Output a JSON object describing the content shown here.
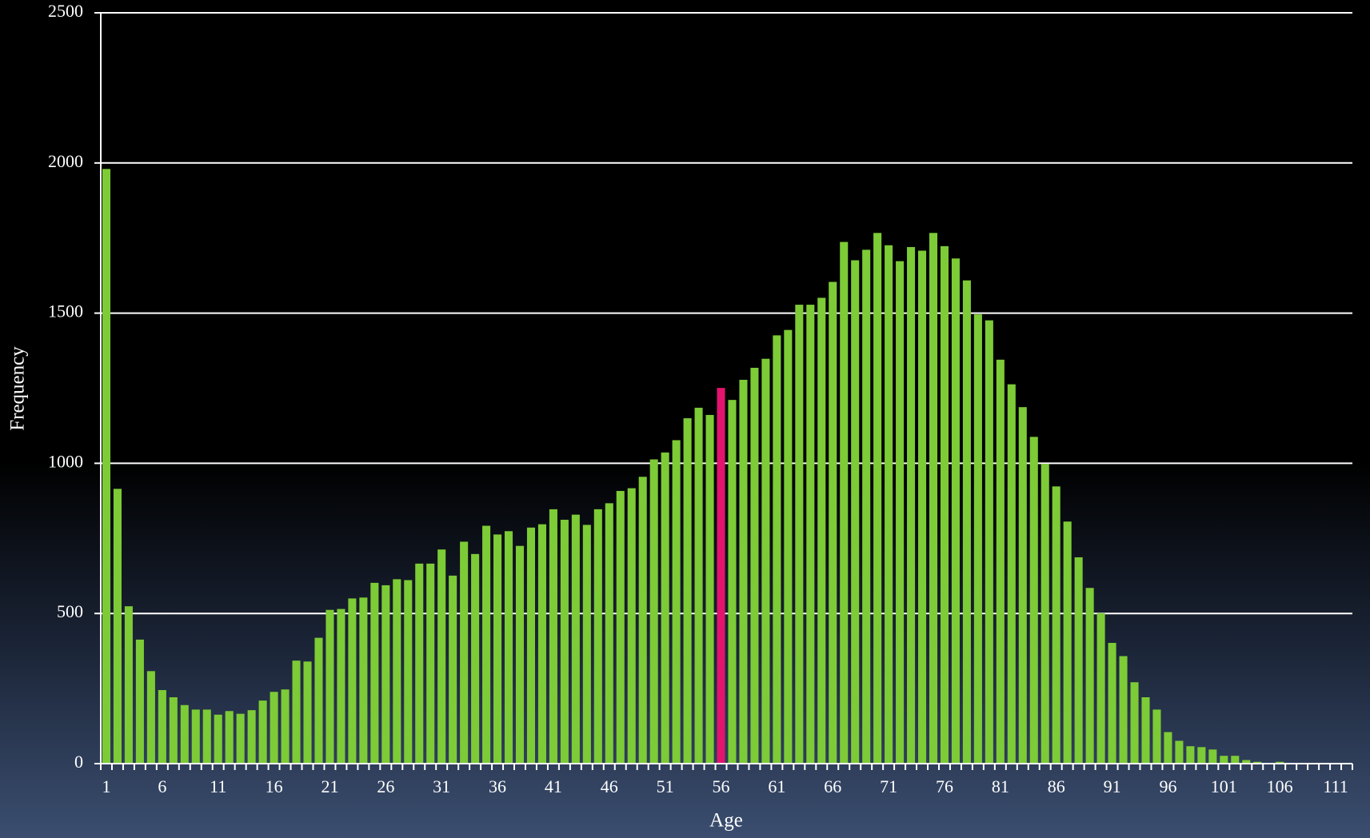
{
  "chart_data": {
    "type": "bar",
    "x_label": "Age",
    "y_label": "Frequency",
    "categories": [
      "1",
      null,
      null,
      null,
      null,
      "6",
      null,
      null,
      null,
      null,
      "11",
      null,
      null,
      null,
      null,
      "16",
      null,
      null,
      null,
      null,
      "21",
      null,
      null,
      null,
      null,
      "26",
      null,
      null,
      null,
      null,
      "31",
      null,
      null,
      null,
      null,
      "36",
      null,
      null,
      null,
      null,
      "41",
      null,
      null,
      null,
      null,
      "46",
      null,
      null,
      null,
      null,
      "51",
      null,
      null,
      null,
      null,
      "56",
      null,
      null,
      null,
      null,
      "61",
      null,
      null,
      null,
      null,
      "66",
      null,
      null,
      null,
      null,
      "71",
      null,
      null,
      null,
      null,
      "76",
      null,
      null,
      null,
      null,
      "81",
      null,
      null,
      null,
      null,
      "86",
      null,
      null,
      null,
      null,
      "91",
      null,
      null,
      null,
      null,
      "96",
      null,
      null,
      null,
      null,
      "101",
      null,
      null,
      null,
      null,
      "106",
      null,
      null,
      null,
      null,
      "111",
      null
    ],
    "values": [
      1980,
      915,
      524,
      413,
      308,
      245,
      221,
      195,
      180,
      180,
      163,
      175,
      166,
      178,
      210,
      239,
      247,
      343,
      340,
      419,
      512,
      515,
      550,
      553,
      602,
      594,
      614,
      611,
      666,
      666,
      713,
      626,
      739,
      698,
      792,
      763,
      774,
      725,
      786,
      797,
      847,
      812,
      829,
      795,
      847,
      867,
      908,
      917,
      955,
      1013,
      1036,
      1077,
      1150,
      1185,
      1161,
      1251,
      1211,
      1278,
      1318,
      1348,
      1426,
      1444,
      1528,
      1528,
      1551,
      1604,
      1737,
      1676,
      1711,
      1767,
      1726,
      1673,
      1720,
      1708,
      1767,
      1723,
      1682,
      1609,
      1496,
      1476,
      1345,
      1263,
      1187,
      1088,
      998,
      923,
      806,
      687,
      585,
      501,
      402,
      358,
      271,
      221,
      180,
      105,
      76,
      58,
      55,
      47,
      26,
      26,
      12,
      6,
      2,
      6,
      2,
      1,
      1,
      1,
      1,
      1
    ],
    "colors": [
      "#7dcb36",
      "#7dcb36",
      "#7dcb36",
      "#7dcb36",
      "#7dcb36",
      "#7dcb36",
      "#7dcb36",
      "#7dcb36",
      "#7dcb36",
      "#7dcb36",
      "#7dcb36",
      "#7dcb36",
      "#7dcb36",
      "#7dcb36",
      "#7dcb36",
      "#7dcb36",
      "#7dcb36",
      "#7dcb36",
      "#7dcb36",
      "#7dcb36",
      "#7dcb36",
      "#7dcb36",
      "#7dcb36",
      "#7dcb36",
      "#7dcb36",
      "#7dcb36",
      "#7dcb36",
      "#7dcb36",
      "#7dcb36",
      "#7dcb36",
      "#7dcb36",
      "#7dcb36",
      "#7dcb36",
      "#7dcb36",
      "#7dcb36",
      "#7dcb36",
      "#7dcb36",
      "#7dcb36",
      "#7dcb36",
      "#7dcb36",
      "#7dcb36",
      "#7dcb36",
      "#7dcb36",
      "#7dcb36",
      "#7dcb36",
      "#7dcb36",
      "#7dcb36",
      "#7dcb36",
      "#7dcb36",
      "#7dcb36",
      "#7dcb36",
      "#7dcb36",
      "#7dcb36",
      "#7dcb36",
      "#7dcb36",
      "#e2146e",
      "#7dcb36",
      "#7dcb36",
      "#7dcb36",
      "#7dcb36",
      "#7dcb36",
      "#7dcb36",
      "#7dcb36",
      "#7dcb36",
      "#7dcb36",
      "#7dcb36",
      "#7dcb36",
      "#7dcb36",
      "#7dcb36",
      "#7dcb36",
      "#7dcb36",
      "#7dcb36",
      "#7dcb36",
      "#7dcb36",
      "#7dcb36",
      "#7dcb36",
      "#7dcb36",
      "#7dcb36",
      "#7dcb36",
      "#7dcb36",
      "#7dcb36",
      "#7dcb36",
      "#7dcb36",
      "#7dcb36",
      "#7dcb36",
      "#7dcb36",
      "#7dcb36",
      "#7dcb36",
      "#7dcb36",
      "#7dcb36",
      "#7dcb36",
      "#7dcb36",
      "#7dcb36",
      "#7dcb36",
      "#7dcb36",
      "#7dcb36",
      "#7dcb36",
      "#7dcb36",
      "#7dcb36",
      "#7dcb36",
      "#7dcb36",
      "#7dcb36",
      "#7dcb36",
      "#7dcb36",
      "#7dcb36",
      "#7dcb36",
      "#7dcb36",
      "#7dcb36",
      "#7dcb36",
      "#7dcb36",
      "#7dcb36",
      "#7dcb36"
    ],
    "ylim": [
      0,
      2500
    ],
    "yticks": [
      0,
      500,
      1000,
      1500,
      2000,
      2500
    ],
    "grid": true
  }
}
